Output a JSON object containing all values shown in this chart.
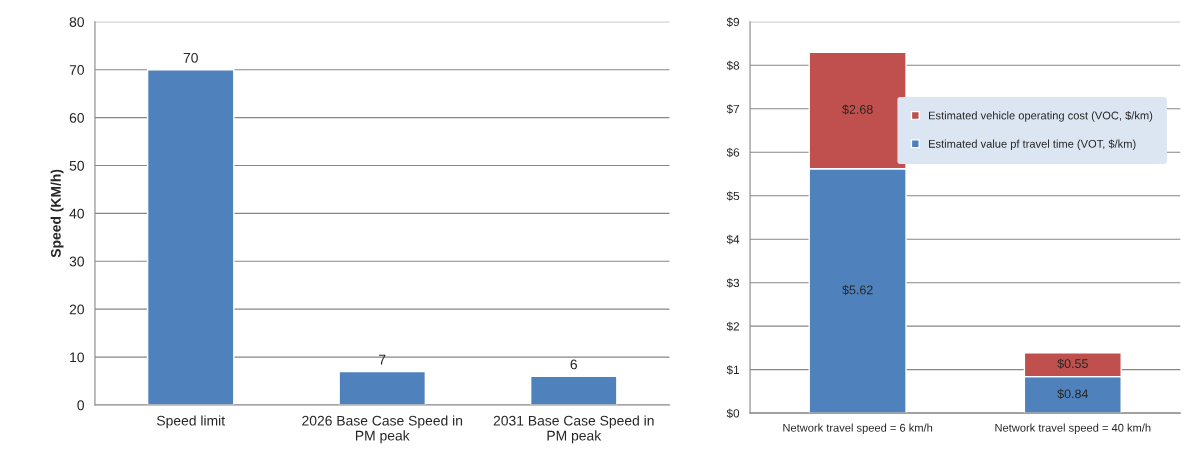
{
  "chart_data": [
    {
      "type": "bar",
      "categories": [
        "Speed limit",
        "2026 Base Case Speed in\nPM peak",
        "2031 Base Case Speed in\nPM peak"
      ],
      "values": [
        70,
        7,
        6
      ],
      "color": "#4f81bd",
      "ylabel": "Speed (KM/h)",
      "ylim": [
        0,
        80
      ],
      "yticks": [
        0,
        10,
        20,
        30,
        40,
        50,
        60,
        70,
        80
      ],
      "grid": "y",
      "data_labels": true
    },
    {
      "type": "bar",
      "stacked": true,
      "categories": [
        "Network travel speed = 6 km/h",
        "Network travel speed = 40 km/h"
      ],
      "series": [
        {
          "name": "Estimated value pf travel time (VOT, $/km)",
          "color": "#4f81bd",
          "values": [
            5.62,
            0.84
          ],
          "value_labels": [
            "$5.62",
            "$0.84"
          ]
        },
        {
          "name": "Estimated vehicle operating cost (VOC, $/km)",
          "color": "#c0504d",
          "values": [
            2.68,
            0.55
          ],
          "value_labels": [
            "$2.68",
            "$0.55"
          ]
        }
      ],
      "ylim": [
        0,
        9
      ],
      "yticks": [
        {
          "value": 0,
          "label": "$0"
        },
        {
          "value": 1,
          "label": "$1"
        },
        {
          "value": 2,
          "label": "$2"
        },
        {
          "value": 3,
          "label": "$3"
        },
        {
          "value": 4,
          "label": "$4"
        },
        {
          "value": 5,
          "label": "$5"
        },
        {
          "value": 6,
          "label": "$6"
        },
        {
          "value": 7,
          "label": "$7"
        },
        {
          "value": 8,
          "label": "$8"
        },
        {
          "value": 9,
          "label": "$9"
        }
      ],
      "grid": "y",
      "legend": "top right"
    }
  ]
}
